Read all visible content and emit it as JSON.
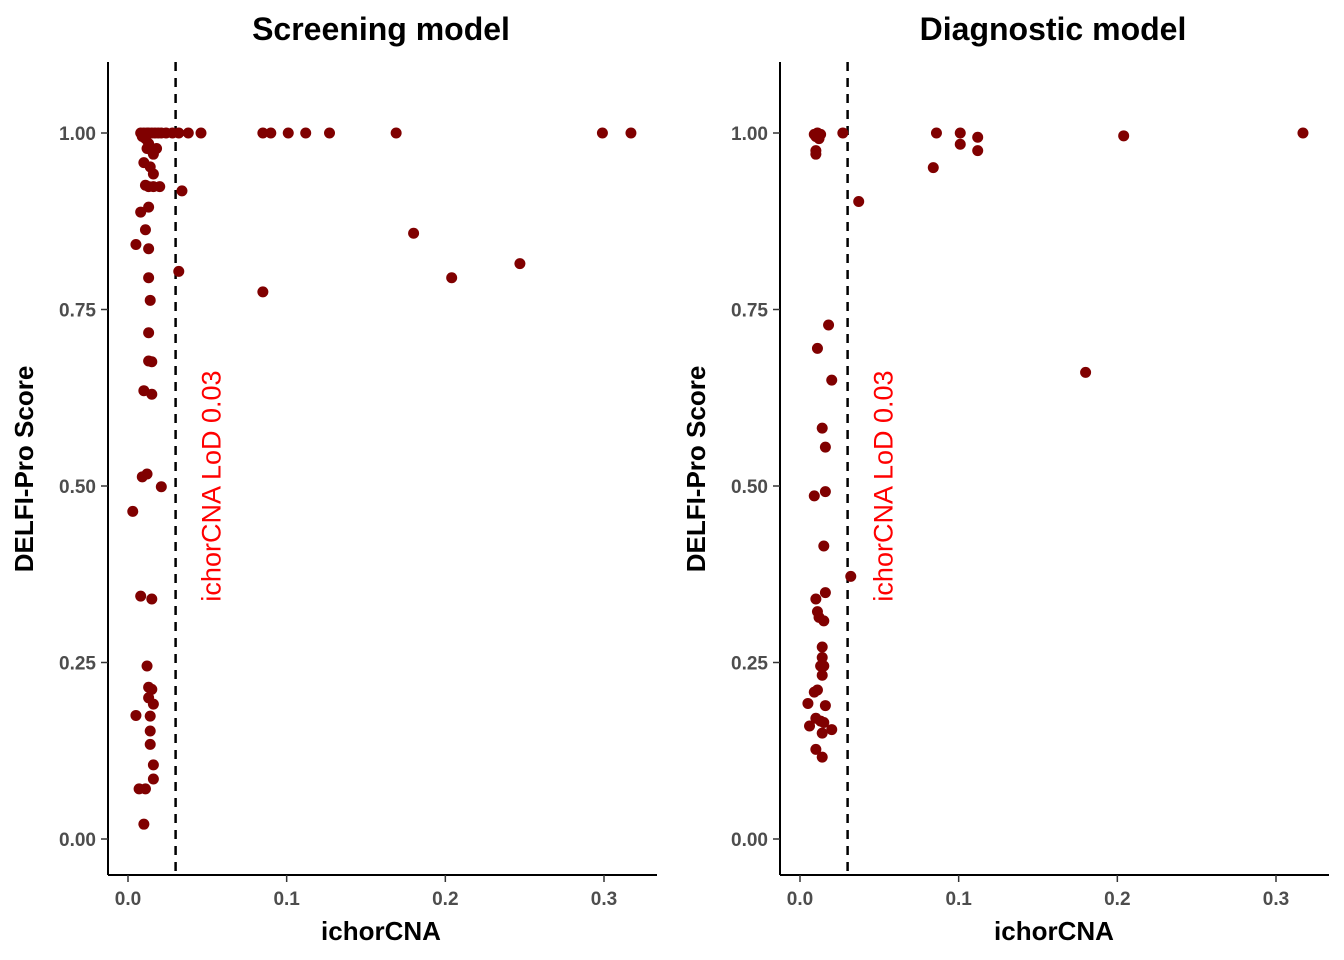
{
  "chart_data": [
    {
      "type": "scatter",
      "title": "Screening model",
      "xlabel": "ichorCNA",
      "ylabel": "DELFI-Pro Score",
      "xlim": [
        -0.0125,
        0.333
      ],
      "ylim": [
        -0.05,
        1.1
      ],
      "x_ticks": [
        0.0,
        0.1,
        0.2,
        0.3
      ],
      "x_tick_labels": [
        "0.0",
        "0.1",
        "0.2",
        "0.3"
      ],
      "y_ticks": [
        0.0,
        0.25,
        0.5,
        0.75,
        1.0
      ],
      "y_tick_labels": [
        "0.00",
        "0.25",
        "0.50",
        "0.75",
        "1.00"
      ],
      "grid": false,
      "point_color": "#800000",
      "vline": {
        "x": 0.03,
        "style": "dashed",
        "color": "#000000"
      },
      "annotation": {
        "text": "ichorCNA LoD 0.03",
        "color": "#ff0000",
        "x": 0.05,
        "y": 0.5,
        "rotation": -90
      },
      "points": [
        [
          0.008,
          1.0
        ],
        [
          0.01,
          1.0
        ],
        [
          0.012,
          1.0
        ],
        [
          0.013,
          1.0
        ],
        [
          0.015,
          1.0
        ],
        [
          0.017,
          1.0
        ],
        [
          0.019,
          1.0
        ],
        [
          0.021,
          1.0
        ],
        [
          0.024,
          1.0
        ],
        [
          0.028,
          1.0
        ],
        [
          0.032,
          1.0
        ],
        [
          0.038,
          1.0
        ],
        [
          0.046,
          1.0
        ],
        [
          0.085,
          1.0
        ],
        [
          0.09,
          1.0
        ],
        [
          0.101,
          1.0
        ],
        [
          0.112,
          1.0
        ],
        [
          0.127,
          1.0
        ],
        [
          0.169,
          1.0
        ],
        [
          0.299,
          1.0
        ],
        [
          0.317,
          1.0
        ],
        [
          0.009,
          0.995
        ],
        [
          0.011,
          0.992
        ],
        [
          0.013,
          0.985
        ],
        [
          0.012,
          0.978
        ],
        [
          0.015,
          0.975
        ],
        [
          0.018,
          0.978
        ],
        [
          0.016,
          0.97
        ],
        [
          0.01,
          0.958
        ],
        [
          0.014,
          0.952
        ],
        [
          0.016,
          0.942
        ],
        [
          0.011,
          0.926
        ],
        [
          0.013,
          0.924
        ],
        [
          0.016,
          0.924
        ],
        [
          0.02,
          0.924
        ],
        [
          0.034,
          0.918
        ],
        [
          0.013,
          0.895
        ],
        [
          0.008,
          0.888
        ],
        [
          0.011,
          0.863
        ],
        [
          0.005,
          0.842
        ],
        [
          0.013,
          0.836
        ],
        [
          0.18,
          0.858
        ],
        [
          0.247,
          0.815
        ],
        [
          0.032,
          0.804
        ],
        [
          0.013,
          0.795
        ],
        [
          0.204,
          0.795
        ],
        [
          0.085,
          0.775
        ],
        [
          0.014,
          0.763
        ],
        [
          0.013,
          0.717
        ],
        [
          0.013,
          0.677
        ],
        [
          0.015,
          0.676
        ],
        [
          0.01,
          0.635
        ],
        [
          0.015,
          0.63
        ],
        [
          0.009,
          0.513
        ],
        [
          0.012,
          0.517
        ],
        [
          0.021,
          0.499
        ],
        [
          0.003,
          0.464
        ],
        [
          0.008,
          0.344
        ],
        [
          0.015,
          0.34
        ],
        [
          0.012,
          0.245
        ],
        [
          0.015,
          0.212
        ],
        [
          0.013,
          0.215
        ],
        [
          0.013,
          0.2
        ],
        [
          0.016,
          0.191
        ],
        [
          0.005,
          0.175
        ],
        [
          0.014,
          0.174
        ],
        [
          0.014,
          0.153
        ],
        [
          0.014,
          0.134
        ],
        [
          0.016,
          0.105
        ],
        [
          0.016,
          0.085
        ],
        [
          0.007,
          0.071
        ],
        [
          0.011,
          0.071
        ],
        [
          0.01,
          0.021
        ]
      ]
    },
    {
      "type": "scatter",
      "title": "Diagnostic model",
      "xlabel": "ichorCNA",
      "ylabel": "DELFI-Pro Score",
      "xlim": [
        -0.0125,
        0.333
      ],
      "ylim": [
        -0.05,
        1.1
      ],
      "x_ticks": [
        0.0,
        0.1,
        0.2,
        0.3
      ],
      "x_tick_labels": [
        "0.0",
        "0.1",
        "0.2",
        "0.3"
      ],
      "y_ticks": [
        0.0,
        0.25,
        0.5,
        0.75,
        1.0
      ],
      "y_tick_labels": [
        "0.00",
        "0.25",
        "0.50",
        "0.75",
        "1.00"
      ],
      "grid": false,
      "point_color": "#800000",
      "vline": {
        "x": 0.03,
        "style": "dashed",
        "color": "#000000"
      },
      "annotation": {
        "text": "ichorCNA LoD 0.03",
        "color": "#ff0000",
        "x": 0.05,
        "y": 0.5,
        "rotation": -90
      },
      "points": [
        [
          0.009,
          0.998
        ],
        [
          0.011,
          1.0
        ],
        [
          0.013,
          0.998
        ],
        [
          0.01,
          0.995
        ],
        [
          0.012,
          0.992
        ],
        [
          0.027,
          1.0
        ],
        [
          0.01,
          0.975
        ],
        [
          0.01,
          0.97
        ],
        [
          0.086,
          1.0
        ],
        [
          0.101,
          1.0
        ],
        [
          0.112,
          0.994
        ],
        [
          0.204,
          0.996
        ],
        [
          0.317,
          1.0
        ],
        [
          0.101,
          0.984
        ],
        [
          0.112,
          0.975
        ],
        [
          0.084,
          0.951
        ],
        [
          0.037,
          0.903
        ],
        [
          0.018,
          0.728
        ],
        [
          0.011,
          0.695
        ],
        [
          0.18,
          0.661
        ],
        [
          0.02,
          0.65
        ],
        [
          0.014,
          0.582
        ],
        [
          0.016,
          0.555
        ],
        [
          0.016,
          0.492
        ],
        [
          0.009,
          0.486
        ],
        [
          0.015,
          0.415
        ],
        [
          0.032,
          0.372
        ],
        [
          0.016,
          0.349
        ],
        [
          0.01,
          0.34
        ],
        [
          0.011,
          0.322
        ],
        [
          0.012,
          0.314
        ],
        [
          0.015,
          0.309
        ],
        [
          0.014,
          0.272
        ],
        [
          0.014,
          0.257
        ],
        [
          0.013,
          0.245
        ],
        [
          0.015,
          0.245
        ],
        [
          0.014,
          0.232
        ],
        [
          0.011,
          0.211
        ],
        [
          0.009,
          0.208
        ],
        [
          0.005,
          0.192
        ],
        [
          0.016,
          0.189
        ],
        [
          0.01,
          0.171
        ],
        [
          0.013,
          0.167
        ],
        [
          0.015,
          0.165
        ],
        [
          0.006,
          0.16
        ],
        [
          0.02,
          0.155
        ],
        [
          0.014,
          0.15
        ],
        [
          0.01,
          0.127
        ],
        [
          0.014,
          0.116
        ]
      ]
    }
  ]
}
